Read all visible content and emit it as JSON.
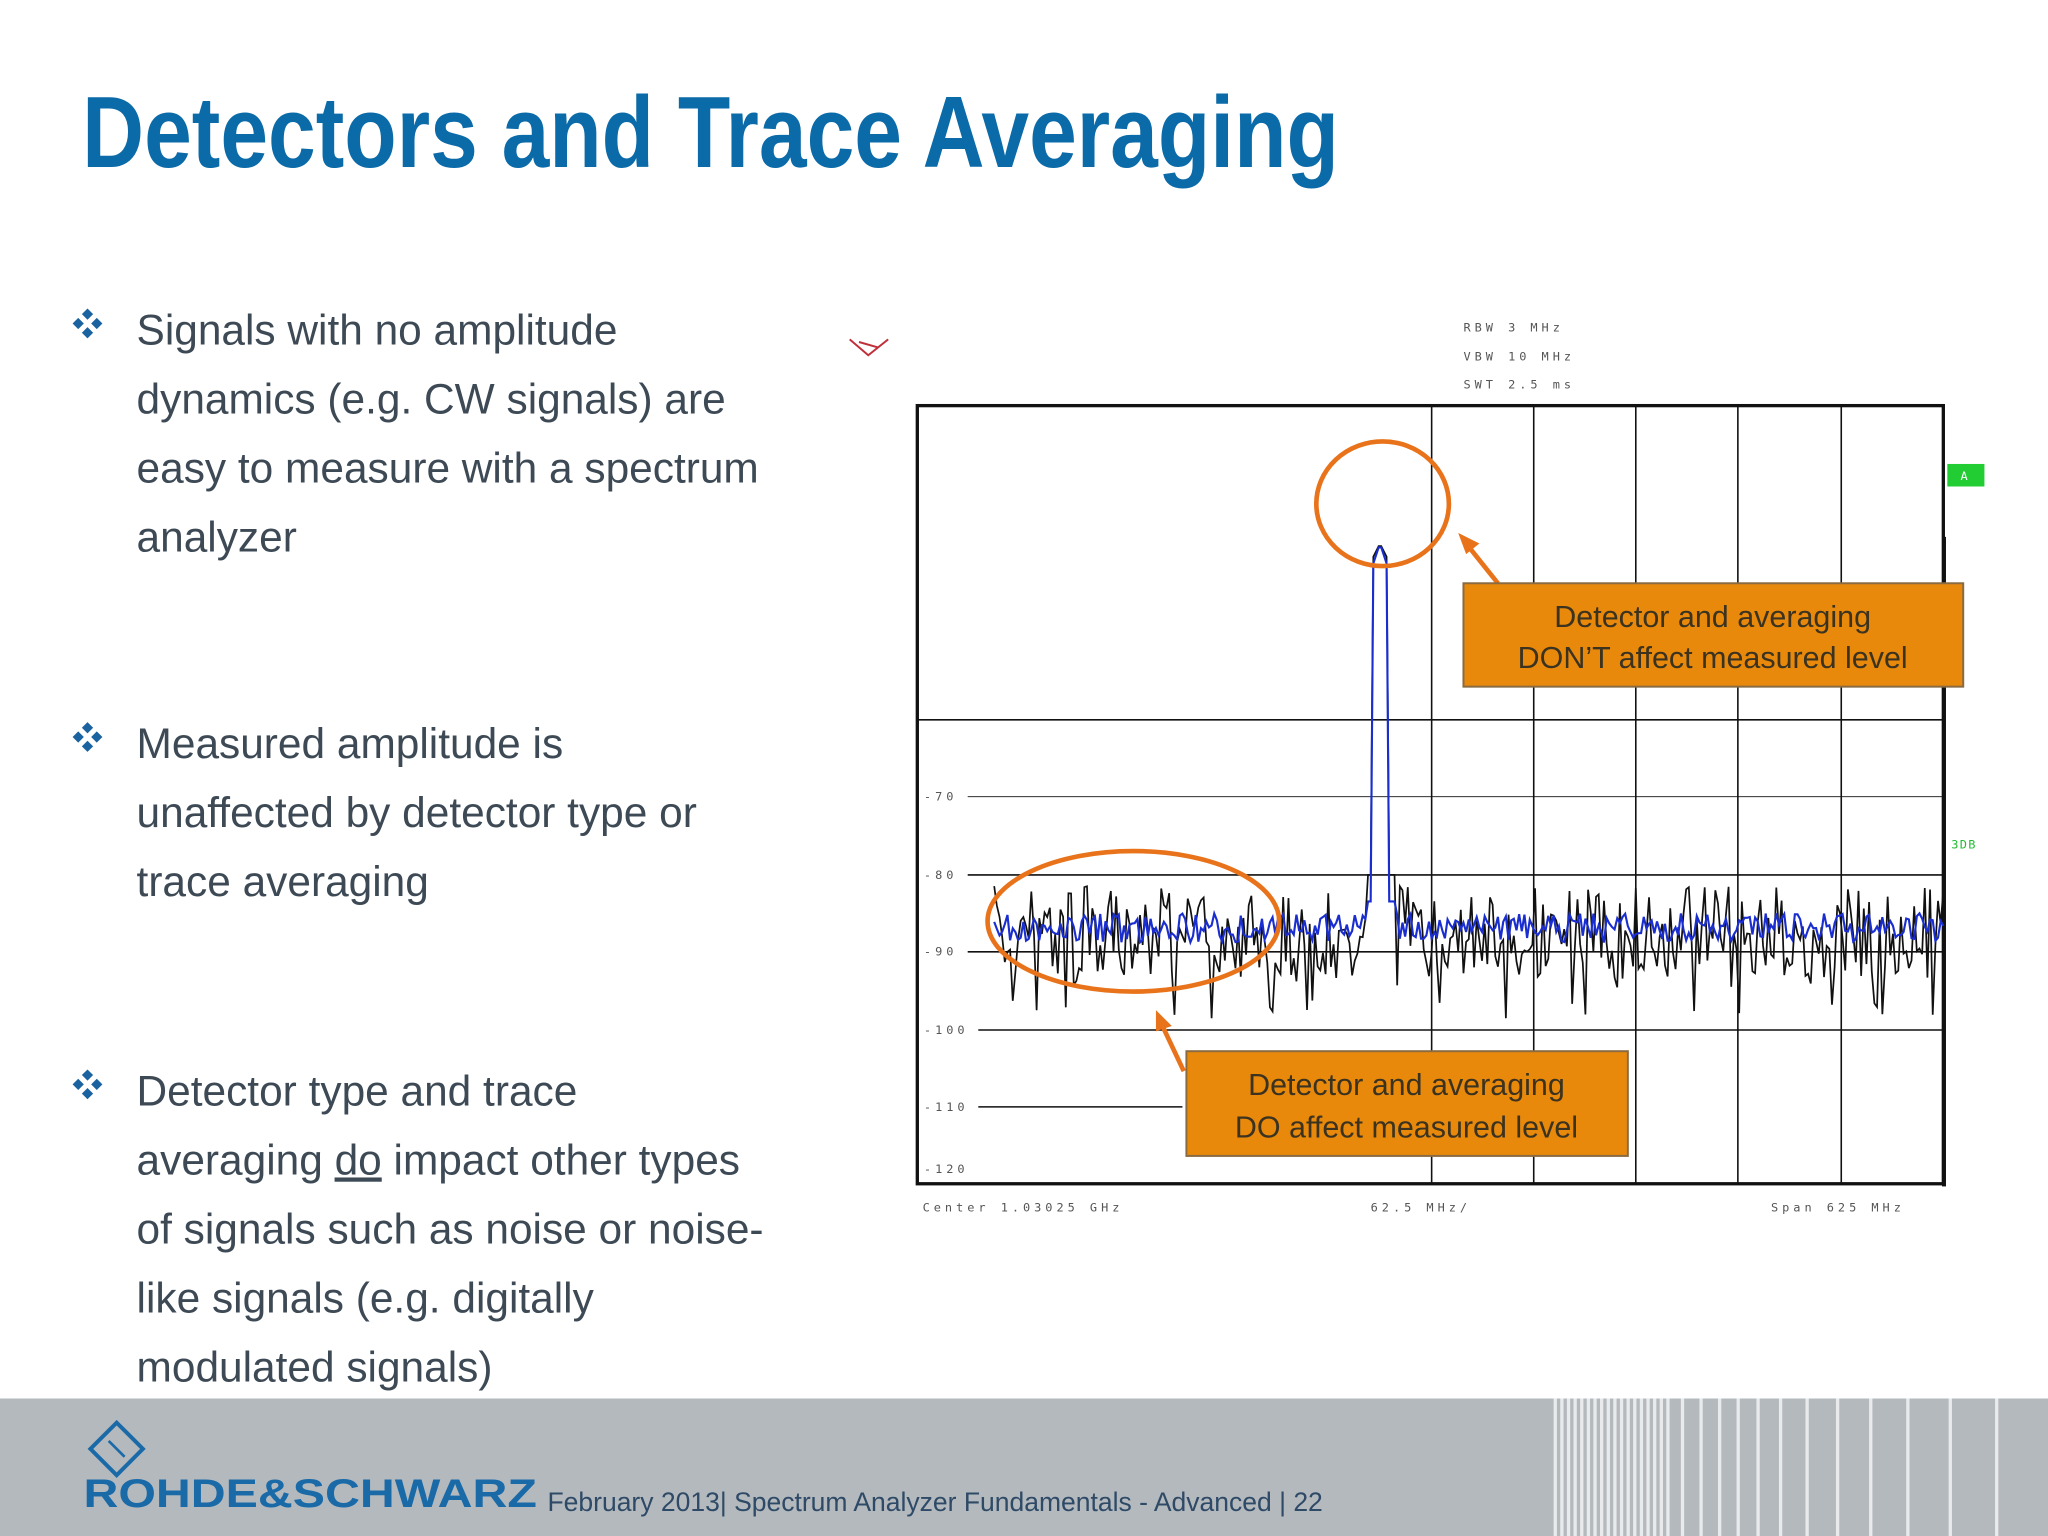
{
  "title": "Detectors and Trace Averaging",
  "bullets": [
    {
      "lines": [
        "Signals with no amplitude",
        "dynamics (e.g. CW signals) are",
        "easy to measure with a spectrum",
        "analyzer"
      ]
    },
    {
      "lines": [
        "Measured amplitude is",
        "unaffected by detector type or",
        "trace averaging"
      ]
    },
    {
      "lines": [
        "Detector type and trace",
        "of signals such as noise or noise-",
        "like signals (e.g. digitally",
        "modulated signals)"
      ],
      "underlined_line": {
        "before": "averaging ",
        "underlined": "do",
        "after": " impact other types"
      }
    }
  ],
  "analyzer": {
    "settings": [
      "RBW 3 MHz",
      "VBW 10 MHz",
      "SWT 2.5 ms"
    ],
    "level_labels": [
      "-70",
      "-80",
      "-90",
      "-100",
      "-110",
      "-120"
    ],
    "center": "Center 1.03025 GHz",
    "division": "62.5 MHz/",
    "span": "Span 625 MHz",
    "trace_marker": "A",
    "side_label": "3DB"
  },
  "callouts": [
    {
      "lines": [
        "Detector and averaging",
        "DON’T affect measured level"
      ]
    },
    {
      "lines": [
        "Detector and averaging",
        "DO affect measured level"
      ]
    }
  ],
  "footer": {
    "brand": "ROHDE&SCHWARZ",
    "text": "February 2013| Spectrum Analyzer Fundamentals - Advanced | 22"
  }
}
